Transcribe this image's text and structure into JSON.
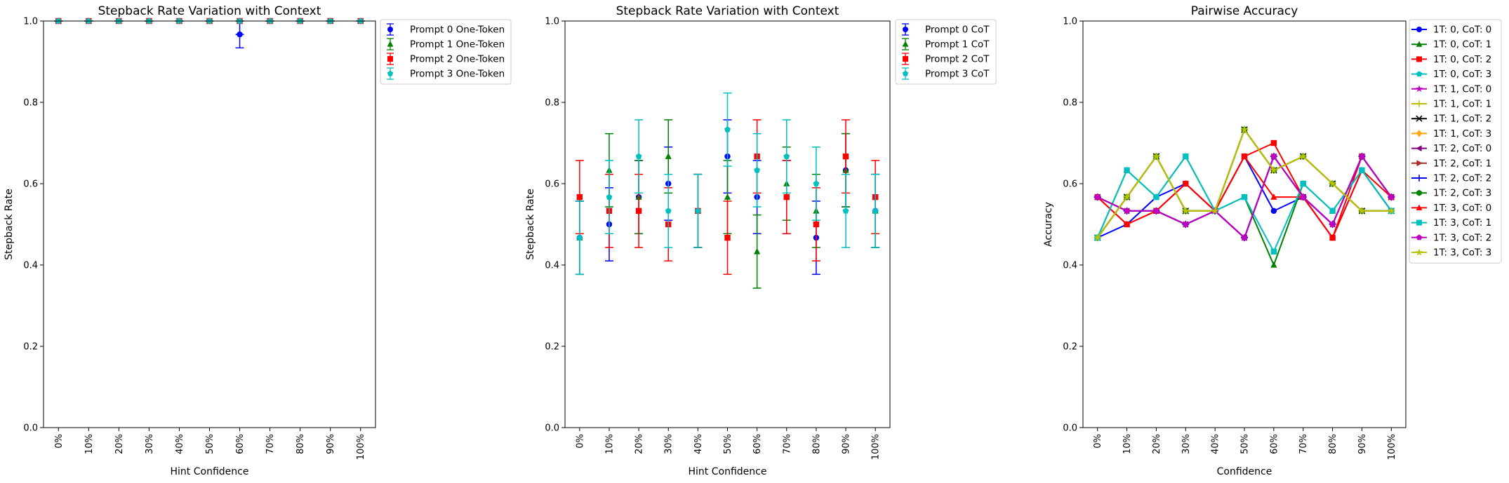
{
  "colors": {
    "b": "#0000ff",
    "g": "#008000",
    "r": "#ff0000",
    "c": "#00bfbf",
    "m": "#bf00bf",
    "y": "#bfbf00",
    "k": "#000000",
    "o": "#ffa500",
    "p": "#800080",
    "br": "#a52a2a",
    "t": "#20b2aa",
    "yg": "#9acd32"
  },
  "chart_data": [
    {
      "type": "scatter",
      "title": "Stepback Rate Variation with Context",
      "xlabel": "Hint Confidence",
      "ylabel": "Stepback Rate",
      "ylim": [
        0,
        1.0
      ],
      "yticks": [
        "0.0",
        "0.2",
        "0.4",
        "0.6",
        "0.8",
        "1.0"
      ],
      "categories": [
        "0%",
        "10%",
        "20%",
        "30%",
        "40%",
        "50%",
        "60%",
        "70%",
        "80%",
        "90%",
        "100%"
      ],
      "legend": "outside-right",
      "series": [
        {
          "name": "Prompt 0 One-Token",
          "color": "b",
          "marker": "circle",
          "values": [
            1,
            1,
            1,
            1,
            1,
            1,
            0.967,
            1,
            1,
            1,
            1
          ],
          "err": [
            0,
            0,
            0,
            0,
            0,
            0,
            0.033,
            0,
            0,
            0,
            0
          ]
        },
        {
          "name": "Prompt 1 One-Token",
          "color": "g",
          "marker": "triangle",
          "values": [
            1,
            1,
            1,
            1,
            1,
            1,
            1,
            1,
            1,
            1,
            1
          ],
          "err": [
            0,
            0,
            0,
            0,
            0,
            0,
            0,
            0,
            0,
            0,
            0
          ]
        },
        {
          "name": "Prompt 2 One-Token",
          "color": "r",
          "marker": "square",
          "values": [
            1,
            1,
            1,
            1,
            1,
            1,
            1,
            1,
            1,
            1,
            1
          ],
          "err": [
            0,
            0,
            0,
            0,
            0,
            0,
            0,
            0,
            0,
            0,
            0
          ]
        },
        {
          "name": "Prompt 3 One-Token",
          "color": "c",
          "marker": "pentagon",
          "values": [
            1,
            1,
            1,
            1,
            1,
            1,
            1,
            1,
            1,
            1,
            1
          ],
          "err": [
            0,
            0,
            0,
            0,
            0,
            0,
            0,
            0,
            0,
            0,
            0
          ]
        }
      ]
    },
    {
      "type": "scatter",
      "title": "Stepback Rate Variation with Context",
      "xlabel": "Hint Confidence",
      "ylabel": "Stepback Rate",
      "ylim": [
        0,
        1.0
      ],
      "yticks": [
        "0.0",
        "0.2",
        "0.4",
        "0.6",
        "0.8",
        "1.0"
      ],
      "categories": [
        "0%",
        "10%",
        "20%",
        "30%",
        "40%",
        "50%",
        "60%",
        "70%",
        "80%",
        "90%",
        "100%"
      ],
      "legend": "outside-right",
      "series": [
        {
          "name": "Prompt 0 CoT",
          "color": "b",
          "marker": "circle",
          "values": [
            0.467,
            0.5,
            0.567,
            0.6,
            0.533,
            0.667,
            0.567,
            0.567,
            0.467,
            0.633,
            0.533
          ],
          "err": [
            0.09,
            0.09,
            0.09,
            0.09,
            0.09,
            0.09,
            0.09,
            0.09,
            0.09,
            0.09,
            0.09
          ]
        },
        {
          "name": "Prompt 1 CoT",
          "color": "g",
          "marker": "triangle",
          "values": [
            0.467,
            0.633,
            0.567,
            0.667,
            0.533,
            0.567,
            0.433,
            0.6,
            0.533,
            0.633,
            0.533
          ],
          "err": [
            0.09,
            0.09,
            0.09,
            0.09,
            0.09,
            0.09,
            0.09,
            0.09,
            0.09,
            0.09,
            0.09
          ]
        },
        {
          "name": "Prompt 2 CoT",
          "color": "r",
          "marker": "square",
          "values": [
            0.567,
            0.533,
            0.533,
            0.5,
            0.533,
            0.467,
            0.667,
            0.567,
            0.5,
            0.667,
            0.567
          ],
          "err": [
            0.09,
            0.09,
            0.09,
            0.09,
            0.09,
            0.09,
            0.09,
            0.09,
            0.09,
            0.09,
            0.09
          ]
        },
        {
          "name": "Prompt 3 CoT",
          "color": "c",
          "marker": "pentagon",
          "values": [
            0.467,
            0.567,
            0.667,
            0.533,
            0.533,
            0.733,
            0.633,
            0.667,
            0.6,
            0.533,
            0.533
          ],
          "err": [
            0.09,
            0.09,
            0.09,
            0.09,
            0.09,
            0.09,
            0.09,
            0.09,
            0.09,
            0.09,
            0.09
          ]
        }
      ]
    },
    {
      "type": "line",
      "title": "Pairwise Accuracy",
      "xlabel": "Confidence",
      "ylabel": "Accuracy",
      "ylim": [
        0,
        1.0
      ],
      "yticks": [
        "0.0",
        "0.2",
        "0.4",
        "0.6",
        "0.8",
        "1.0"
      ],
      "categories": [
        "0%",
        "10%",
        "20%",
        "30%",
        "40%",
        "50%",
        "60%",
        "70%",
        "80%",
        "90%",
        "100%"
      ],
      "legend": "outside-right",
      "series": [
        {
          "name": "1T: 0, CoT: 0",
          "color": "b",
          "marker": "circle",
          "values": [
            0.467,
            0.5,
            0.567,
            0.6,
            0.533,
            0.667,
            0.533,
            0.567,
            0.467,
            0.633,
            0.533
          ]
        },
        {
          "name": "1T: 0, CoT: 1",
          "color": "g",
          "marker": "triangle",
          "values": [
            0.467,
            0.633,
            0.567,
            0.667,
            0.533,
            0.567,
            0.4,
            0.6,
            0.533,
            0.633,
            0.533
          ]
        },
        {
          "name": "1T: 0, CoT: 2",
          "color": "r",
          "marker": "square",
          "values": [
            0.567,
            0.5,
            0.533,
            0.6,
            0.533,
            0.667,
            0.7,
            0.567,
            0.467,
            0.667,
            0.567
          ]
        },
        {
          "name": "1T: 0, CoT: 3",
          "color": "c",
          "marker": "pentagon",
          "values": [
            0.467,
            0.567,
            0.667,
            0.533,
            0.533,
            0.733,
            0.633,
            0.667,
            0.6,
            0.533,
            0.533
          ]
        },
        {
          "name": "1T: 1, CoT: 0",
          "color": "m",
          "marker": "star",
          "values": [
            0.567,
            0.533,
            0.533,
            0.5,
            0.533,
            0.467,
            0.667,
            0.567,
            0.5,
            0.667,
            0.567
          ]
        },
        {
          "name": "1T: 1, CoT: 1",
          "color": "y",
          "marker": "plus",
          "values": [
            0.467,
            0.567,
            0.667,
            0.533,
            0.533,
            0.733,
            0.633,
            0.667,
            0.6,
            0.533,
            0.533
          ]
        },
        {
          "name": "1T: 1, CoT: 2",
          "color": "k",
          "marker": "x",
          "values": [
            0.467,
            0.567,
            0.667,
            0.533,
            0.533,
            0.733,
            0.633,
            0.667,
            0.6,
            0.533,
            0.533
          ]
        },
        {
          "name": "1T: 1, CoT: 3",
          "color": "o",
          "marker": "diamond",
          "values": [
            0.467,
            0.567,
            0.667,
            0.533,
            0.533,
            0.733,
            0.633,
            0.667,
            0.6,
            0.533,
            0.533
          ]
        },
        {
          "name": "1T: 2, CoT: 0",
          "color": "p",
          "marker": "tri-left",
          "values": [
            0.567,
            0.533,
            0.533,
            0.5,
            0.533,
            0.467,
            0.667,
            0.567,
            0.5,
            0.667,
            0.567
          ]
        },
        {
          "name": "1T: 2, CoT: 1",
          "color": "br",
          "marker": "tri-right",
          "values": [
            0.567,
            0.533,
            0.533,
            0.5,
            0.533,
            0.467,
            0.667,
            0.567,
            0.5,
            0.667,
            0.567
          ]
        },
        {
          "name": "1T: 2, CoT: 2",
          "color": "b",
          "marker": "plus",
          "values": [
            0.567,
            0.533,
            0.533,
            0.5,
            0.533,
            0.467,
            0.667,
            0.567,
            0.5,
            0.667,
            0.567
          ]
        },
        {
          "name": "1T: 2, CoT: 3",
          "color": "g",
          "marker": "hexagon",
          "values": [
            0.467,
            0.567,
            0.667,
            0.533,
            0.533,
            0.733,
            0.633,
            0.667,
            0.6,
            0.533,
            0.533
          ]
        },
        {
          "name": "1T: 3, CoT: 0",
          "color": "r",
          "marker": "triangle",
          "values": [
            0.567,
            0.5,
            0.533,
            0.6,
            0.533,
            0.667,
            0.567,
            0.567,
            0.467,
            0.633,
            0.567
          ]
        },
        {
          "name": "1T: 3, CoT: 1",
          "color": "c",
          "marker": "square",
          "values": [
            0.467,
            0.633,
            0.567,
            0.667,
            0.533,
            0.567,
            0.433,
            0.6,
            0.533,
            0.633,
            0.533
          ]
        },
        {
          "name": "1T: 3, CoT: 2",
          "color": "m",
          "marker": "pentagon",
          "values": [
            0.567,
            0.533,
            0.533,
            0.5,
            0.533,
            0.467,
            0.667,
            0.567,
            0.5,
            0.667,
            0.567
          ]
        },
        {
          "name": "1T: 3, CoT: 3",
          "color": "y",
          "marker": "star",
          "values": [
            0.467,
            0.567,
            0.667,
            0.533,
            0.533,
            0.733,
            0.633,
            0.667,
            0.6,
            0.533,
            0.533
          ]
        }
      ]
    }
  ]
}
